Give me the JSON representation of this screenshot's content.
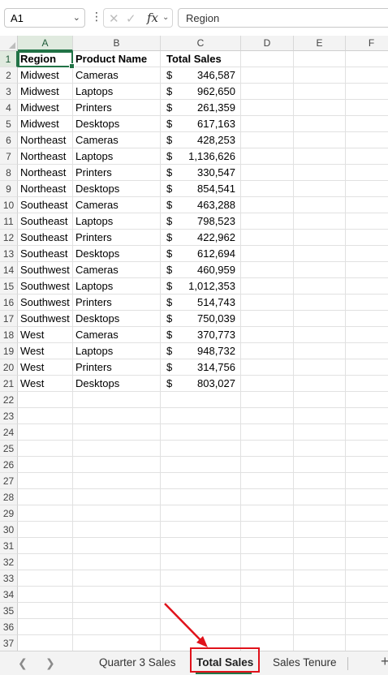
{
  "formula_bar": {
    "name_box": "A1",
    "fx_label": "fx",
    "formula_value": "Region"
  },
  "columns": [
    "A",
    "B",
    "C",
    "D",
    "E",
    "F"
  ],
  "header_row": {
    "region": "Region",
    "product": "Product Name",
    "sales": "Total Sales"
  },
  "rows": [
    {
      "region": "Midwest",
      "product": "Cameras",
      "currency": "$",
      "sales": "346,587"
    },
    {
      "region": "Midwest",
      "product": "Laptops",
      "currency": "$",
      "sales": "962,650"
    },
    {
      "region": "Midwest",
      "product": "Printers",
      "currency": "$",
      "sales": "261,359"
    },
    {
      "region": "Midwest",
      "product": "Desktops",
      "currency": "$",
      "sales": "617,163"
    },
    {
      "region": "Northeast",
      "product": "Cameras",
      "currency": "$",
      "sales": "428,253"
    },
    {
      "region": "Northeast",
      "product": "Laptops",
      "currency": "$",
      "sales": "1,136,626"
    },
    {
      "region": "Northeast",
      "product": "Printers",
      "currency": "$",
      "sales": "330,547"
    },
    {
      "region": "Northeast",
      "product": "Desktops",
      "currency": "$",
      "sales": "854,541"
    },
    {
      "region": "Southeast",
      "product": "Cameras",
      "currency": "$",
      "sales": "463,288"
    },
    {
      "region": "Southeast",
      "product": "Laptops",
      "currency": "$",
      "sales": "798,523"
    },
    {
      "region": "Southeast",
      "product": "Printers",
      "currency": "$",
      "sales": "422,962"
    },
    {
      "region": "Southeast",
      "product": "Desktops",
      "currency": "$",
      "sales": "612,694"
    },
    {
      "region": "Southwest",
      "product": "Cameras",
      "currency": "$",
      "sales": "460,959"
    },
    {
      "region": "Southwest",
      "product": "Laptops",
      "currency": "$",
      "sales": "1,012,353"
    },
    {
      "region": "Southwest",
      "product": "Printers",
      "currency": "$",
      "sales": "514,743"
    },
    {
      "region": "Southwest",
      "product": "Desktops",
      "currency": "$",
      "sales": "750,039"
    },
    {
      "region": "West",
      "product": "Cameras",
      "currency": "$",
      "sales": "370,773"
    },
    {
      "region": "West",
      "product": "Laptops",
      "currency": "$",
      "sales": "948,732"
    },
    {
      "region": "West",
      "product": "Printers",
      "currency": "$",
      "sales": "314,756"
    },
    {
      "region": "West",
      "product": "Desktops",
      "currency": "$",
      "sales": "803,027"
    }
  ],
  "visible_row_count": 37,
  "sheet_tabs": {
    "tabs": [
      "Quarter 3 Sales",
      "Total Sales",
      "Sales Tenure"
    ],
    "active": "Total Sales",
    "add_label": "+"
  },
  "colors": {
    "accent": "#217346",
    "highlight": "#e0121b"
  }
}
